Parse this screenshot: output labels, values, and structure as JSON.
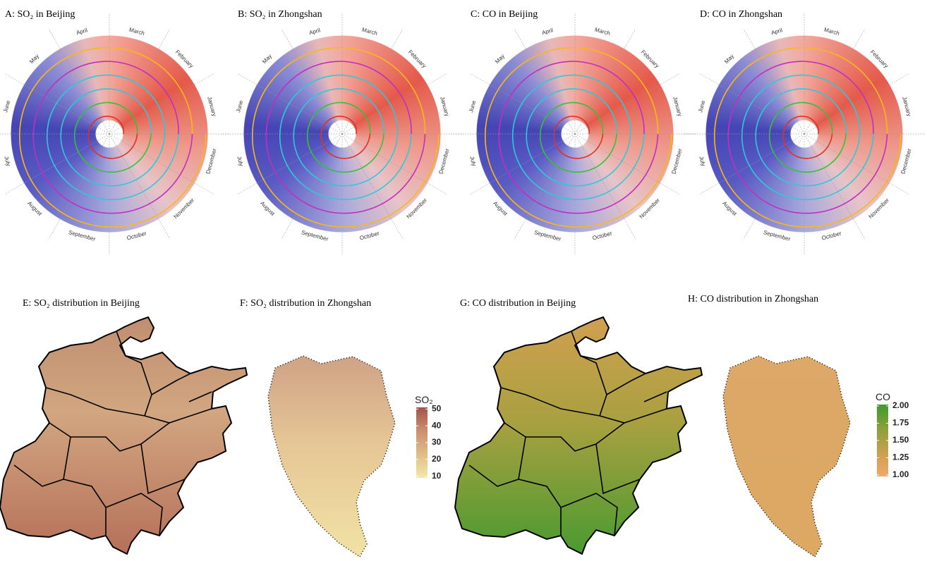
{
  "panels": [
    {
      "title": "A: SO₂ in Beijing"
    },
    {
      "title": "B: SO₂ in Zhongshan"
    },
    {
      "title": "C: CO in Beijing"
    },
    {
      "title": "D: CO in Zhongshan"
    }
  ],
  "months": [
    "January",
    "February",
    "March",
    "April",
    "May",
    "June",
    "July",
    "August",
    "September",
    "October",
    "November",
    "December"
  ],
  "maps": [
    {
      "title": "E: SO₂ distribution in Beijing"
    },
    {
      "title": "F: SO₂ distribution in Zhongshan"
    },
    {
      "title": "G: CO distribution in Beijing"
    },
    {
      "title": "H: CO distribution in Zhongshan"
    }
  ],
  "legends": [
    {
      "title": "SO₂",
      "ylim": [
        9,
        51
      ],
      "yticks": [
        10,
        20,
        30,
        40,
        50
      ],
      "colors": [
        "#f3e8a8",
        "#e0bd88",
        "#c99070",
        "#a3534a"
      ]
    },
    {
      "title": "CO",
      "ylim": [
        0.98,
        2.02
      ],
      "yticks": [
        {
          "value": 1,
          "label": "1.00"
        },
        {
          "value": 1.25,
          "label": "1.25"
        },
        {
          "value": 1.5,
          "label": "1.50"
        },
        {
          "value": 1.75,
          "label": "1.75"
        },
        {
          "value": 2,
          "label": "2.00"
        }
      ],
      "colors": [
        "#f2a868",
        "#c9a050",
        "#8aa03a",
        "#3e9a2c"
      ]
    }
  ]
}
